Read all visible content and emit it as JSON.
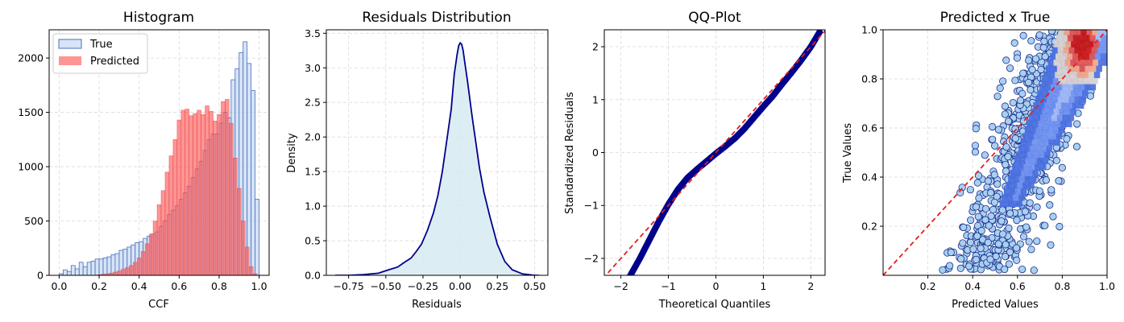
{
  "chart_data": [
    {
      "type": "bar",
      "subtype": "histogram",
      "title": "Histogram",
      "xlabel": "CCF",
      "ylabel": "",
      "xlim": [
        -0.05,
        1.05
      ],
      "ylim": [
        0,
        2260
      ],
      "xticks": [
        "0.0",
        "0.2",
        "0.4",
        "0.6",
        "0.8",
        "1.0"
      ],
      "yticks": [
        "0",
        "500",
        "1000",
        "1500",
        "2000"
      ],
      "grid": true,
      "legend": "top-left",
      "bin_width": 0.02,
      "series": [
        {
          "name": "True",
          "color": "#c6d9f4",
          "edge": "#4a6fb8",
          "x": [
            0.01,
            0.03,
            0.05,
            0.07,
            0.09,
            0.11,
            0.13,
            0.15,
            0.17,
            0.19,
            0.21,
            0.23,
            0.25,
            0.27,
            0.29,
            0.31,
            0.33,
            0.35,
            0.37,
            0.39,
            0.41,
            0.43,
            0.45,
            0.47,
            0.49,
            0.51,
            0.53,
            0.55,
            0.57,
            0.59,
            0.61,
            0.63,
            0.65,
            0.67,
            0.69,
            0.71,
            0.73,
            0.75,
            0.77,
            0.79,
            0.81,
            0.83,
            0.85,
            0.87,
            0.89,
            0.91,
            0.93,
            0.95,
            0.97,
            0.99
          ],
          "values": [
            15,
            50,
            35,
            90,
            60,
            120,
            80,
            120,
            130,
            150,
            150,
            160,
            170,
            190,
            200,
            230,
            240,
            260,
            280,
            300,
            310,
            340,
            360,
            380,
            400,
            450,
            500,
            560,
            600,
            640,
            700,
            760,
            820,
            900,
            980,
            1050,
            1150,
            1250,
            1300,
            1300,
            1400,
            1500,
            1450,
            1800,
            1900,
            2050,
            2150,
            1950,
            1700,
            700
          ]
        },
        {
          "name": "Predicted",
          "color": "#ff5a5a",
          "edge": "#d42020",
          "x": [
            0.2,
            0.22,
            0.24,
            0.26,
            0.28,
            0.3,
            0.32,
            0.34,
            0.36,
            0.38,
            0.4,
            0.42,
            0.44,
            0.46,
            0.48,
            0.5,
            0.52,
            0.54,
            0.56,
            0.58,
            0.6,
            0.62,
            0.64,
            0.66,
            0.68,
            0.7,
            0.72,
            0.74,
            0.76,
            0.78,
            0.8,
            0.82,
            0.84,
            0.86,
            0.88,
            0.9,
            0.92,
            0.94,
            0.96,
            0.98
          ],
          "values": [
            5,
            10,
            15,
            20,
            30,
            40,
            55,
            70,
            90,
            120,
            160,
            220,
            290,
            380,
            500,
            650,
            780,
            950,
            1100,
            1250,
            1430,
            1520,
            1530,
            1470,
            1490,
            1520,
            1480,
            1560,
            1510,
            1420,
            1480,
            1600,
            1620,
            1400,
            1080,
            800,
            500,
            260,
            80,
            15
          ]
        }
      ]
    },
    {
      "type": "area",
      "subtype": "kde",
      "title": "Residuals Distribution",
      "xlabel": "Residuals",
      "ylabel": "Density",
      "xlim": [
        -0.9,
        0.59
      ],
      "ylim": [
        0,
        3.55
      ],
      "xticks": [
        "−0.75",
        "−0.50",
        "−0.25",
        "0.00",
        "0.25",
        "0.50"
      ],
      "yticks": [
        "0.0",
        "0.5",
        "1.0",
        "1.5",
        "2.0",
        "2.5",
        "3.0",
        "3.5"
      ],
      "grid": true,
      "line_color": "#00008b",
      "fill_color": "#d6ebf2",
      "x": [
        -0.84,
        -0.75,
        -0.65,
        -0.55,
        -0.48,
        -0.42,
        -0.38,
        -0.33,
        -0.3,
        -0.26,
        -0.22,
        -0.18,
        -0.15,
        -0.12,
        -0.09,
        -0.06,
        -0.04,
        -0.02,
        -0.01,
        0.0,
        0.01,
        0.02,
        0.03,
        0.05,
        0.08,
        0.1,
        0.13,
        0.16,
        0.2,
        0.25,
        0.3,
        0.35,
        0.42,
        0.5,
        0.53
      ],
      "values": [
        0.0,
        0.0,
        0.01,
        0.03,
        0.08,
        0.12,
        0.18,
        0.25,
        0.33,
        0.45,
        0.65,
        0.9,
        1.15,
        1.5,
        1.95,
        2.4,
        2.9,
        3.2,
        3.32,
        3.36,
        3.34,
        3.25,
        3.1,
        2.8,
        2.3,
        2.0,
        1.55,
        1.2,
        0.85,
        0.45,
        0.2,
        0.08,
        0.02,
        0.0,
        0.0
      ]
    },
    {
      "type": "scatter",
      "subtype": "qq",
      "title": "QQ-Plot",
      "xlabel": "Theoretical Quantiles",
      "ylabel": "Standardized Residuals",
      "xlim": [
        -2.35,
        2.3
      ],
      "ylim": [
        -2.32,
        2.32
      ],
      "xticks": [
        "−2",
        "−1",
        "0",
        "1",
        "2"
      ],
      "yticks": [
        "−2",
        "−1",
        "0",
        "1",
        "2"
      ],
      "grid": true,
      "point_color": "#00008b",
      "reference_line_color": "#e02020",
      "curve_x": [
        -1.85,
        -1.6,
        -1.4,
        -1.2,
        -1.0,
        -0.8,
        -0.6,
        -0.4,
        -0.2,
        0.0,
        0.2,
        0.4,
        0.6,
        0.8,
        1.0,
        1.2,
        1.4,
        1.6,
        1.8,
        2.0,
        2.2
      ],
      "curve_y": [
        -2.4,
        -2.0,
        -1.65,
        -1.3,
        -0.98,
        -0.7,
        -0.48,
        -0.32,
        -0.17,
        -0.02,
        0.12,
        0.27,
        0.45,
        0.66,
        0.87,
        1.07,
        1.3,
        1.52,
        1.75,
        2.0,
        2.3
      ]
    },
    {
      "type": "scatter",
      "subtype": "scatter-with-density",
      "title": "Predicted x True",
      "xlabel": "Predicted Values",
      "ylabel": "True Values",
      "xlim": [
        0.0,
        1.0
      ],
      "ylim": [
        0.0,
        1.0
      ],
      "xticks": [
        "0.2",
        "0.4",
        "0.6",
        "0.8",
        "1.0"
      ],
      "yticks": [
        "0.2",
        "0.4",
        "0.6",
        "0.8",
        "1.0"
      ],
      "grid": true,
      "point_color": "#a8d0f0",
      "point_edge": "#1a2a8a",
      "reference_line_color": "#e02020",
      "density_colors": [
        "#4a6fe0",
        "#6e8ff0",
        "#9fb6f5",
        "#d9d0d0",
        "#f2a488",
        "#e05050",
        "#c81414"
      ]
    }
  ]
}
